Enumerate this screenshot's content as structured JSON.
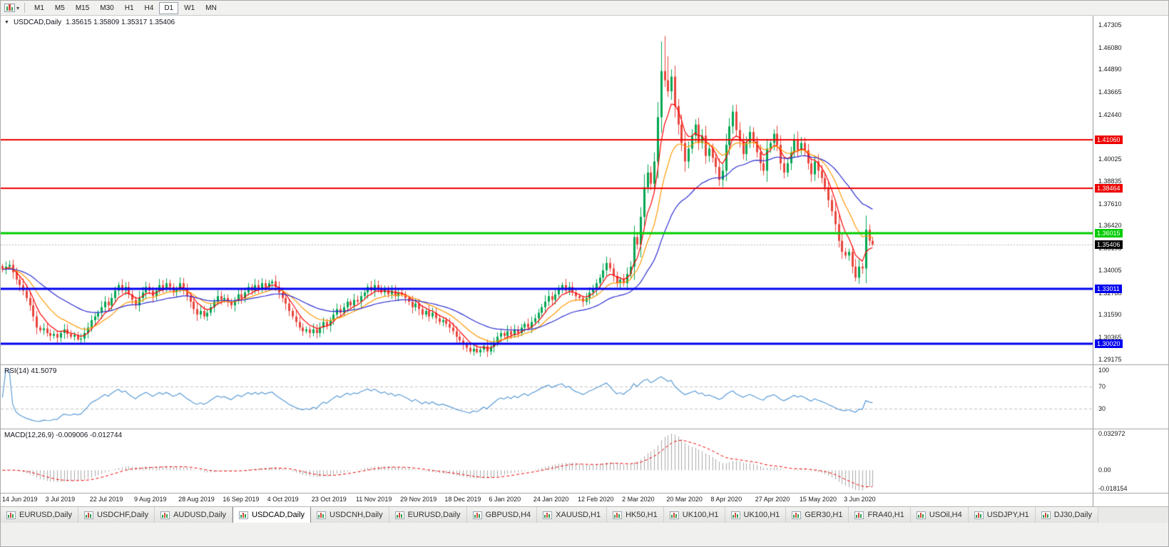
{
  "icons": {
    "caret_glyph": "▾",
    "collapse_glyph": "▼"
  },
  "toolbar": {
    "timeframes": [
      {
        "label": "M1",
        "active": false
      },
      {
        "label": "M5",
        "active": false
      },
      {
        "label": "M15",
        "active": false
      },
      {
        "label": "M30",
        "active": false
      },
      {
        "label": "H1",
        "active": false
      },
      {
        "label": "H4",
        "active": false
      },
      {
        "label": "D1",
        "active": true
      },
      {
        "label": "W1",
        "active": false
      },
      {
        "label": "MN",
        "active": false
      }
    ]
  },
  "chart": {
    "title": "USDCAD,Daily",
    "ohlc_text": "1.35615 1.35809 1.35317 1.35406",
    "y_axis": {
      "ticks": [
        "1.47305",
        "1.46080",
        "1.44890",
        "1.43665",
        "1.42440",
        "1.40025",
        "1.38835",
        "1.37610",
        "1.36420",
        "1.35195",
        "1.34005",
        "1.32780",
        "1.31590",
        "1.30365",
        "1.29175"
      ]
    },
    "hlines": [
      {
        "value": 1.4106,
        "label": "1.41060",
        "color": "#ee0000",
        "width": 2
      },
      {
        "value": 1.38464,
        "label": "1.38464",
        "color": "#ee0000",
        "width": 2
      },
      {
        "value": 1.36015,
        "label": "1.36015",
        "color": "#00cc00",
        "width": 3
      },
      {
        "value": 1.33011,
        "label": "1.33011",
        "color": "#0000ee",
        "width": 3
      },
      {
        "value": 1.3002,
        "label": "1.30020",
        "color": "#0000ee",
        "width": 3
      }
    ],
    "current_price": {
      "value": 1.35406,
      "label": "1.35406",
      "bg": "#000000",
      "fg": "#ffffff"
    }
  },
  "rsi_panel": {
    "label": "RSI(14) 41.5079",
    "line_color": "#5b9bd5",
    "levels": [
      {
        "value": 100,
        "label": "100",
        "line": false
      },
      {
        "value": 70,
        "label": "70",
        "line": true
      },
      {
        "value": 30,
        "label": "30",
        "line": true
      }
    ]
  },
  "macd_panel": {
    "label": "MACD(12,26,9) -0.009006 -0.012744",
    "hist_color": "#a9a9a9",
    "signal_color": "#ee0000",
    "range": [
      -0.018154,
      0.032972
    ],
    "axis": [
      {
        "value": 0.032972,
        "label": "0.032972"
      },
      {
        "value": 0,
        "label": "0.00"
      },
      {
        "value": -0.018154,
        "label": "-0.018154"
      }
    ]
  },
  "x_axis": {
    "labels": [
      "14 Jun 2019",
      "3 Jul 2019",
      "22 Jul 2019",
      "9 Aug 2019",
      "28 Aug 2019",
      "16 Sep 2019",
      "4 Oct 2019",
      "23 Oct 2019",
      "11 Nov 2019",
      "29 Nov 2019",
      "18 Dec 2019",
      "6 Jan 2020",
      "24 Jan 2020",
      "12 Feb 2020",
      "2 Mar 2020",
      "20 Mar 2020",
      "8 Apr 2020",
      "27 Apr 2020",
      "15 May 2020",
      "3 Jun 2020"
    ],
    "label_indices": [
      0,
      13,
      26,
      39,
      52,
      65,
      78,
      91,
      104,
      117,
      130,
      143,
      156,
      169,
      182,
      195,
      208,
      221,
      234,
      247
    ]
  },
  "tabs": [
    {
      "label": "EURUSD,Daily",
      "active": false
    },
    {
      "label": "USDCHF,Daily",
      "active": false
    },
    {
      "label": "AUDUSD,Daily",
      "active": false
    },
    {
      "label": "USDCAD,Daily",
      "active": true
    },
    {
      "label": "USDCNH,Daily",
      "active": false
    },
    {
      "label": "EURUSD,Daily",
      "active": false
    },
    {
      "label": "GBPUSD,H4",
      "active": false
    },
    {
      "label": "XAUUSD,H1",
      "active": false
    },
    {
      "label": "HK50,H1",
      "active": false
    },
    {
      "label": "UK100,H1",
      "active": false
    },
    {
      "label": "UK100,H1",
      "active": false
    },
    {
      "label": "GER30,H1",
      "active": false
    },
    {
      "label": "FRA40,H1",
      "active": false
    },
    {
      "label": "USOil,H4",
      "active": false
    },
    {
      "label": "USDJPY,H1",
      "active": false
    },
    {
      "label": "DJ30,Daily",
      "active": false
    }
  ],
  "chart_data": {
    "type": "candlestick",
    "symbol": "USDCAD",
    "timeframe": "Daily",
    "visible_range": [
      1.289,
      1.478
    ],
    "up_color": "#00a651",
    "down_color": "#e8453c",
    "overlays": [
      {
        "name": "ma-fast",
        "type": "ema",
        "period": 6,
        "color": "#ff0000"
      },
      {
        "name": "ma-mid",
        "type": "ema",
        "period": 14,
        "color": "#ff9900"
      },
      {
        "name": "ma-slow",
        "type": "ema",
        "period": 34,
        "color": "#2b2bd0"
      }
    ],
    "closes": [
      1.3405,
      1.342,
      1.343,
      1.339,
      1.335,
      1.332,
      1.329,
      1.325,
      1.321,
      1.315,
      1.309,
      1.3075,
      1.3085,
      1.306,
      1.3045,
      1.3055,
      1.3035,
      1.306,
      1.308,
      1.3055,
      1.304,
      1.305,
      1.3025,
      1.303,
      1.306,
      1.309,
      1.313,
      1.315,
      1.317,
      1.32,
      1.323,
      1.321,
      1.325,
      1.329,
      1.332,
      1.329,
      1.331,
      1.327,
      1.324,
      1.321,
      1.325,
      1.328,
      1.331,
      1.329,
      1.326,
      1.329,
      1.332,
      1.33,
      1.333,
      1.331,
      1.328,
      1.33,
      1.333,
      1.33,
      1.326,
      1.323,
      1.319,
      1.316,
      1.318,
      1.315,
      1.317,
      1.32,
      1.323,
      1.326,
      1.324,
      1.325,
      1.323,
      1.321,
      1.324,
      1.327,
      1.325,
      1.328,
      1.331,
      1.329,
      1.332,
      1.33,
      1.333,
      1.331,
      1.333,
      1.334,
      1.331,
      1.328,
      1.325,
      1.322,
      1.318,
      1.315,
      1.312,
      1.309,
      1.307,
      1.308,
      1.306,
      1.308,
      1.306,
      1.309,
      1.312,
      1.31,
      1.313,
      1.316,
      1.319,
      1.317,
      1.32,
      1.323,
      1.321,
      1.324,
      1.323,
      1.326,
      1.328,
      1.331,
      1.329,
      1.332,
      1.33,
      1.328,
      1.33,
      1.327,
      1.329,
      1.326,
      1.328,
      1.327,
      1.325,
      1.323,
      1.32,
      1.322,
      1.319,
      1.316,
      1.318,
      1.315,
      1.317,
      1.314,
      1.312,
      1.313,
      1.311,
      1.309,
      1.307,
      1.304,
      1.302,
      1.3,
      1.298,
      1.296,
      1.2975,
      1.2955,
      1.297,
      1.299,
      1.296,
      1.2985,
      1.301,
      1.304,
      1.306,
      1.3045,
      1.307,
      1.305,
      1.308,
      1.306,
      1.309,
      1.311,
      1.309,
      1.312,
      1.314,
      1.317,
      1.32,
      1.323,
      1.326,
      1.324,
      1.327,
      1.33,
      1.332,
      1.329,
      1.331,
      1.328,
      1.326,
      1.325,
      1.323,
      1.325,
      1.328,
      1.33,
      1.333,
      1.336,
      1.34,
      1.344,
      1.341,
      1.337,
      1.333,
      1.335,
      1.333,
      1.338,
      1.342,
      1.358,
      1.354,
      1.369,
      1.385,
      1.393,
      1.387,
      1.399,
      1.423,
      1.448,
      1.443,
      1.437,
      1.445,
      1.429,
      1.419,
      1.409,
      1.399,
      1.406,
      1.413,
      1.419,
      1.409,
      1.413,
      1.402,
      1.406,
      1.401,
      1.396,
      1.389,
      1.394,
      1.408,
      1.418,
      1.426,
      1.416,
      1.41,
      1.403,
      1.409,
      1.415,
      1.41,
      1.404,
      1.398,
      1.394,
      1.406,
      1.409,
      1.414,
      1.408,
      1.398,
      1.393,
      1.398,
      1.404,
      1.411,
      1.405,
      1.409,
      1.405,
      1.398,
      1.392,
      1.399,
      1.394,
      1.39,
      1.385,
      1.378,
      1.372,
      1.365,
      1.356,
      1.35,
      1.348,
      1.35,
      1.342,
      1.336,
      1.342,
      1.341,
      1.362,
      1.356,
      1.3541
    ],
    "wick_overrides": {
      "22": {
        "l": 1.3016
      },
      "139": {
        "l": 1.2949
      },
      "193": {
        "h": 1.464
      },
      "194": {
        "h": 1.467
      },
      "195": {
        "h": 1.456
      },
      "250": {
        "l": 1.334
      },
      "255": {
        "h": 1.3581,
        "l": 1.3532
      }
    }
  }
}
